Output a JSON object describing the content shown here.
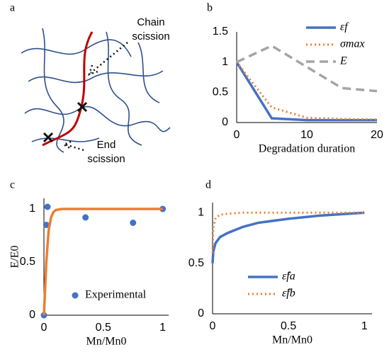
{
  "diagram": {
    "label": "a",
    "annotations": [
      "Chain scission",
      "End scission"
    ]
  },
  "chart_data": [
    {
      "type": "line",
      "label": "b",
      "xlabel": "Degradation duration",
      "x": [
        0,
        5,
        10,
        15,
        20
      ],
      "xlim": [
        0,
        20
      ],
      "xticks": [
        0,
        10,
        20
      ],
      "ylim": [
        0,
        1.5
      ],
      "yticks": [
        0,
        0.5,
        1,
        1.5
      ],
      "legend": "upper right",
      "series": [
        {
          "name": "εf",
          "color": "#4472c4",
          "style": "solid",
          "values": [
            1,
            0.07,
            0.04,
            0.04,
            0.04
          ]
        },
        {
          "name": "σmax",
          "color": "#ed7d31",
          "style": "dotted",
          "values": [
            1,
            0.25,
            0.08,
            0.06,
            0.05
          ]
        },
        {
          "name": "E",
          "color": "#a5a5a5",
          "style": "dashed",
          "values": [
            1,
            1.27,
            0.92,
            0.57,
            0.52
          ]
        }
      ]
    },
    {
      "type": "scatter",
      "label": "c",
      "xlabel": "Mn/Mn0",
      "ylabel": "E/E0",
      "xlim": [
        0,
        1.05
      ],
      "xticks": [
        0,
        0.5,
        1
      ],
      "ylim": [
        0,
        1.1
      ],
      "yticks": [
        0,
        0.5,
        1
      ],
      "legend": "lower right",
      "series": [
        {
          "name": "Experimental",
          "color": "#4472c4",
          "style": "points",
          "x": [
            0,
            0.02,
            0.03,
            0.35,
            0.75,
            1
          ],
          "values": [
            0,
            0.85,
            1.02,
            0.92,
            0.87,
            1
          ]
        },
        {
          "color": "#ed7d31",
          "style": "solid",
          "x": [
            0,
            0.02,
            0.04,
            0.06,
            0.08,
            0.1,
            0.15,
            0.2,
            0.3,
            0.5,
            1
          ],
          "values": [
            0,
            0.5,
            0.8,
            0.92,
            0.97,
            0.99,
            1,
            1,
            1,
            1,
            1
          ]
        }
      ]
    },
    {
      "type": "line",
      "label": "d",
      "xlabel": "Mn/Mn0",
      "x": [
        0,
        0.005,
        0.02,
        0.05,
        0.1,
        0.2,
        0.3,
        0.5,
        0.7,
        1
      ],
      "xlim": [
        0,
        1.05
      ],
      "xticks": [
        0,
        0.5,
        1
      ],
      "ylim": [
        0,
        1.1
      ],
      "yticks": [
        0,
        0.5,
        1
      ],
      "legend": "lower right",
      "series": [
        {
          "name": "ε̂fa",
          "color": "#4472c4",
          "style": "solid",
          "values": [
            0.5,
            0.62,
            0.7,
            0.76,
            0.8,
            0.86,
            0.9,
            0.94,
            0.97,
            1
          ]
        },
        {
          "name": "ε̂fb",
          "color": "#ed7d31",
          "style": "dotted",
          "values": [
            0.6,
            0.85,
            0.95,
            0.98,
            0.99,
            1,
            1,
            1,
            1,
            1
          ]
        }
      ]
    }
  ]
}
